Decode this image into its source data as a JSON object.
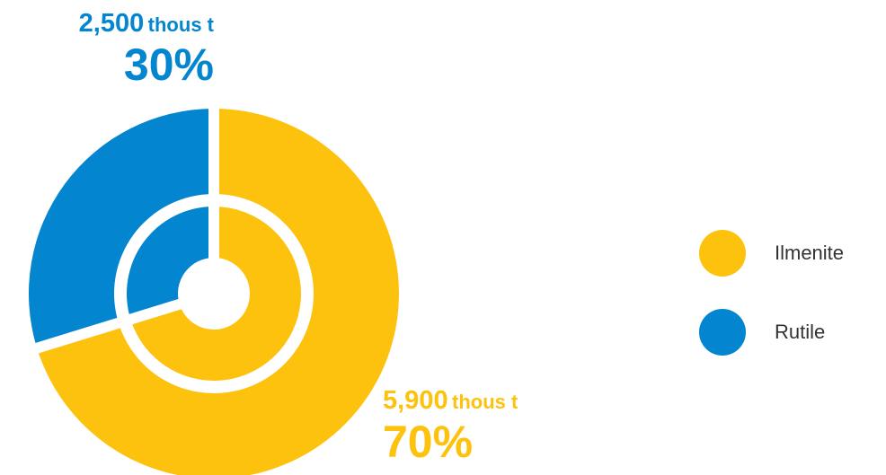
{
  "chart_data": {
    "type": "pie",
    "variant": "donut",
    "series": [
      {
        "name": "Ilmenite",
        "value": 5900,
        "value_label": "5,900",
        "unit_label": "thous t",
        "percent_label": "70%",
        "color": "#FDC20E"
      },
      {
        "name": "Rutile",
        "value": 2500,
        "value_label": "2,500",
        "unit_label": "thous t",
        "percent_label": "30%",
        "color": "#0385CF"
      }
    ],
    "legend": {
      "position": "right",
      "items": [
        "Ilmenite",
        "Rutile"
      ]
    }
  }
}
